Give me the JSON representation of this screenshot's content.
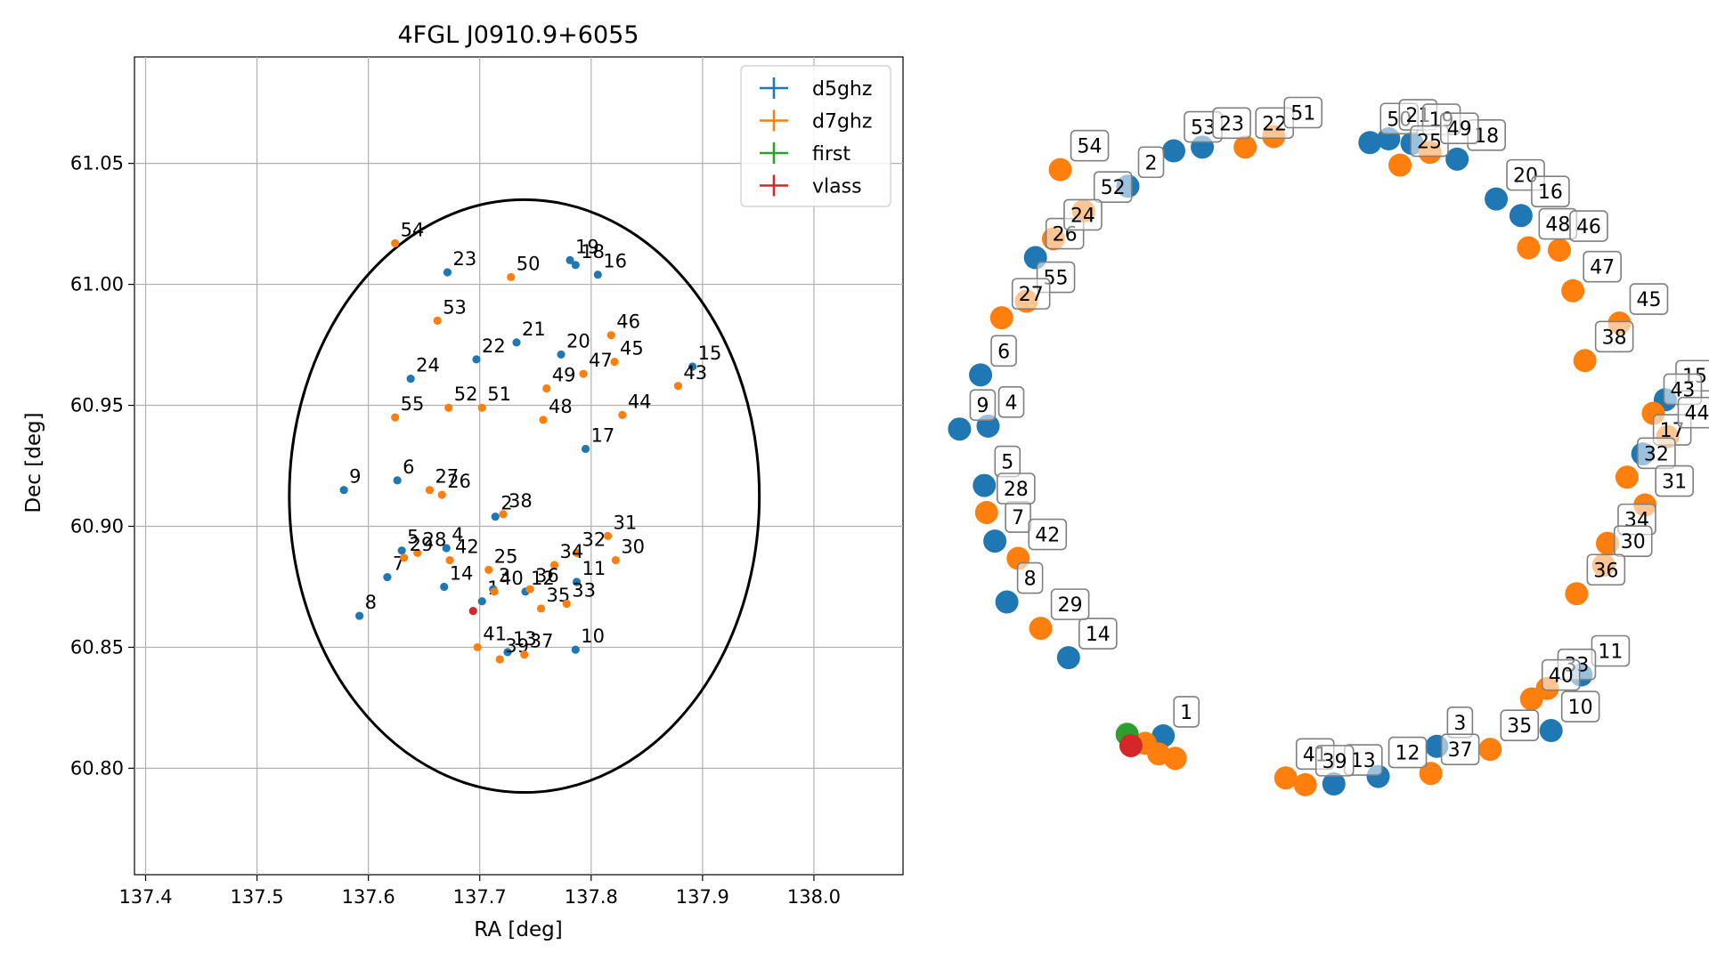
{
  "chart_data": [
    {
      "type": "scatter",
      "title": "4FGL J0910.9+6055",
      "xlabel": "RA [deg]",
      "ylabel": "Dec [deg]",
      "xlim": [
        137.39,
        138.08
      ],
      "ylim": [
        60.756,
        61.094
      ],
      "xticks": [
        137.4,
        137.5,
        137.6,
        137.7,
        137.8,
        137.9,
        138.0
      ],
      "yticks": [
        60.8,
        60.85,
        60.9,
        60.95,
        61.0,
        61.05
      ],
      "xtick_labels": [
        "137.4",
        "137.5",
        "137.6",
        "137.7",
        "137.8",
        "137.9",
        "138.0"
      ],
      "ytick_labels": [
        "60.80",
        "60.85",
        "60.90",
        "60.95",
        "61.00",
        "61.05"
      ],
      "grid": true,
      "legend_position": "top-right",
      "ellipse": {
        "center_ra": 137.74,
        "center_dec": 60.9125,
        "half_width_ra": 0.211,
        "half_height_dec": 0.1225,
        "color": "#000000"
      },
      "colors": {
        "d5ghz": "#1f77b4",
        "d7ghz": "#ff7f0e",
        "first": "#2ca02c",
        "vlass": "#d62728"
      },
      "series": [
        {
          "name": "d5ghz",
          "color": "#1f77b4",
          "points": [
            {
              "label": "8",
              "x": 137.592,
              "y": 60.863
            },
            {
              "label": "7",
              "x": 137.617,
              "y": 60.879
            },
            {
              "label": "5",
              "x": 137.63,
              "y": 60.89
            },
            {
              "label": "4",
              "x": 137.67,
              "y": 60.891
            },
            {
              "label": "14",
              "x": 137.668,
              "y": 60.875
            },
            {
              "label": "9",
              "x": 137.578,
              "y": 60.915
            },
            {
              "label": "6",
              "x": 137.626,
              "y": 60.919
            },
            {
              "label": "1",
              "x": 137.702,
              "y": 60.869
            },
            {
              "label": "3",
              "x": 137.712,
              "y": 60.874
            },
            {
              "label": "12",
              "x": 137.741,
              "y": 60.873
            },
            {
              "label": "11",
              "x": 137.787,
              "y": 60.877
            },
            {
              "label": "13",
              "x": 137.725,
              "y": 60.848
            },
            {
              "label": "10",
              "x": 137.786,
              "y": 60.849
            },
            {
              "label": "2",
              "x": 137.714,
              "y": 60.904
            },
            {
              "label": "17",
              "x": 137.795,
              "y": 60.932
            },
            {
              "label": "15",
              "x": 137.891,
              "y": 60.966
            },
            {
              "label": "20",
              "x": 137.773,
              "y": 60.971
            },
            {
              "label": "21",
              "x": 137.733,
              "y": 60.976
            },
            {
              "label": "22",
              "x": 137.697,
              "y": 60.969
            },
            {
              "label": "24",
              "x": 137.638,
              "y": 60.961
            },
            {
              "label": "23",
              "x": 137.671,
              "y": 61.005
            },
            {
              "label": "19",
              "x": 137.781,
              "y": 61.01
            },
            {
              "label": "18",
              "x": 137.786,
              "y": 61.008
            },
            {
              "label": "16",
              "x": 137.806,
              "y": 61.004
            }
          ]
        },
        {
          "name": "d7ghz",
          "color": "#ff7f0e",
          "points": [
            {
              "label": "54",
              "x": 137.624,
              "y": 61.017
            },
            {
              "label": "53",
              "x": 137.662,
              "y": 60.985
            },
            {
              "label": "50",
              "x": 137.728,
              "y": 61.003
            },
            {
              "label": "46",
              "x": 137.818,
              "y": 60.979
            },
            {
              "label": "45",
              "x": 137.821,
              "y": 60.968
            },
            {
              "label": "47",
              "x": 137.793,
              "y": 60.963
            },
            {
              "label": "49",
              "x": 137.76,
              "y": 60.957
            },
            {
              "label": "43",
              "x": 137.878,
              "y": 60.958
            },
            {
              "label": "44",
              "x": 137.828,
              "y": 60.946
            },
            {
              "label": "48",
              "x": 137.757,
              "y": 60.944
            },
            {
              "label": "51",
              "x": 137.702,
              "y": 60.949
            },
            {
              "label": "52",
              "x": 137.672,
              "y": 60.949
            },
            {
              "label": "55",
              "x": 137.624,
              "y": 60.945
            },
            {
              "label": "27",
              "x": 137.655,
              "y": 60.915
            },
            {
              "label": "26",
              "x": 137.666,
              "y": 60.913
            },
            {
              "label": "38",
              "x": 137.721,
              "y": 60.905
            },
            {
              "label": "31",
              "x": 137.815,
              "y": 60.896
            },
            {
              "label": "30",
              "x": 137.822,
              "y": 60.886
            },
            {
              "label": "32",
              "x": 137.787,
              "y": 60.889
            },
            {
              "label": "34",
              "x": 137.767,
              "y": 60.884
            },
            {
              "label": "28",
              "x": 137.644,
              "y": 60.889
            },
            {
              "label": "29",
              "x": 137.632,
              "y": 60.887
            },
            {
              "label": "42",
              "x": 137.673,
              "y": 60.886
            },
            {
              "label": "25",
              "x": 137.708,
              "y": 60.882
            },
            {
              "label": "40",
              "x": 137.713,
              "y": 60.873
            },
            {
              "label": "36",
              "x": 137.745,
              "y": 60.874
            },
            {
              "label": "35",
              "x": 137.755,
              "y": 60.866
            },
            {
              "label": "33",
              "x": 137.778,
              "y": 60.868
            },
            {
              "label": "41",
              "x": 137.698,
              "y": 60.85
            },
            {
              "label": "39",
              "x": 137.718,
              "y": 60.845
            },
            {
              "label": "37",
              "x": 137.74,
              "y": 60.847
            }
          ]
        },
        {
          "name": "first",
          "color": "#2ca02c",
          "points": []
        },
        {
          "name": "vlass",
          "color": "#d62728",
          "points": [
            {
              "label": "",
              "x": 137.694,
              "y": 60.865
            }
          ]
        }
      ]
    },
    {
      "type": "scatter",
      "title": "",
      "axes_visible": false,
      "xlim": [
        0,
        1
      ],
      "ylim": [
        0,
        1
      ],
      "marker_size": "large",
      "label_style": "boxed",
      "points": [
        {
          "label": "50",
          "x": 0.556,
          "y": 0.95,
          "series": "d5ghz"
        },
        {
          "label": "21",
          "x": 0.581,
          "y": 0.955,
          "series": "d5ghz"
        },
        {
          "label": "19",
          "x": 0.612,
          "y": 0.949,
          "series": "d5ghz"
        },
        {
          "label": "18",
          "x": 0.672,
          "y": 0.928,
          "series": "d5ghz"
        },
        {
          "label": "20",
          "x": 0.724,
          "y": 0.875,
          "series": "d5ghz"
        },
        {
          "label": "16",
          "x": 0.757,
          "y": 0.853,
          "series": "d5ghz"
        },
        {
          "label": "15",
          "x": 0.949,
          "y": 0.608,
          "series": "d5ghz"
        },
        {
          "label": "17",
          "x": 0.919,
          "y": 0.536,
          "series": "d5ghz"
        },
        {
          "label": "11",
          "x": 0.837,
          "y": 0.242,
          "series": "d5ghz"
        },
        {
          "label": "10",
          "x": 0.797,
          "y": 0.168,
          "series": "d5ghz"
        },
        {
          "label": "13",
          "x": 0.508,
          "y": 0.097,
          "series": "d5ghz"
        },
        {
          "label": "12",
          "x": 0.567,
          "y": 0.107,
          "series": "d5ghz"
        },
        {
          "label": "3",
          "x": 0.645,
          "y": 0.147,
          "series": "d5ghz"
        },
        {
          "label": "1",
          "x": 0.281,
          "y": 0.161,
          "series": "d5ghz"
        },
        {
          "label": "14",
          "x": 0.155,
          "y": 0.265,
          "series": "d5ghz"
        },
        {
          "label": "8",
          "x": 0.073,
          "y": 0.339,
          "series": "d5ghz"
        },
        {
          "label": "7",
          "x": 0.057,
          "y": 0.42,
          "series": "d5ghz"
        },
        {
          "label": "5",
          "x": 0.043,
          "y": 0.494,
          "series": "d5ghz"
        },
        {
          "label": "9",
          "x": 0.01,
          "y": 0.569,
          "series": "d5ghz"
        },
        {
          "label": "4",
          "x": 0.048,
          "y": 0.573,
          "series": "d5ghz"
        },
        {
          "label": "6",
          "x": 0.038,
          "y": 0.641,
          "series": "d5ghz"
        },
        {
          "label": "26",
          "x": 0.111,
          "y": 0.797,
          "series": "d5ghz"
        },
        {
          "label": "2",
          "x": 0.234,
          "y": 0.892,
          "series": "d5ghz"
        },
        {
          "label": "53",
          "x": 0.295,
          "y": 0.939,
          "series": "d5ghz"
        },
        {
          "label": "23",
          "x": 0.333,
          "y": 0.944,
          "series": "d5ghz"
        },
        {
          "label": "25",
          "x": 0.596,
          "y": 0.92,
          "series": "d7ghz"
        },
        {
          "label": "49",
          "x": 0.636,
          "y": 0.937,
          "series": "d7ghz"
        },
        {
          "label": "22",
          "x": 0.39,
          "y": 0.944,
          "series": "d7ghz"
        },
        {
          "label": "51",
          "x": 0.428,
          "y": 0.958,
          "series": "d7ghz"
        },
        {
          "label": "54",
          "x": 0.144,
          "y": 0.914,
          "series": "d7ghz"
        },
        {
          "label": "52",
          "x": 0.175,
          "y": 0.859,
          "series": "d7ghz"
        },
        {
          "label": "24",
          "x": 0.135,
          "y": 0.822,
          "series": "d7ghz"
        },
        {
          "label": "55",
          "x": 0.099,
          "y": 0.739,
          "series": "d7ghz"
        },
        {
          "label": "27",
          "x": 0.066,
          "y": 0.717,
          "series": "d7ghz"
        },
        {
          "label": "28",
          "x": 0.046,
          "y": 0.458,
          "series": "d7ghz"
        },
        {
          "label": "42",
          "x": 0.088,
          "y": 0.397,
          "series": "d7ghz"
        },
        {
          "label": "29",
          "x": 0.118,
          "y": 0.304,
          "series": "d7ghz"
        },
        {
          "label": "48",
          "x": 0.767,
          "y": 0.81,
          "series": "d7ghz"
        },
        {
          "label": "46",
          "x": 0.808,
          "y": 0.807,
          "series": "d7ghz"
        },
        {
          "label": "47",
          "x": 0.826,
          "y": 0.753,
          "series": "d7ghz"
        },
        {
          "label": "45",
          "x": 0.888,
          "y": 0.71,
          "series": "d7ghz"
        },
        {
          "label": "38",
          "x": 0.842,
          "y": 0.66,
          "series": "d7ghz"
        },
        {
          "label": "43",
          "x": 0.933,
          "y": 0.59,
          "series": "d7ghz"
        },
        {
          "label": "44",
          "x": 0.952,
          "y": 0.559,
          "series": "d7ghz"
        },
        {
          "label": "32",
          "x": 0.898,
          "y": 0.505,
          "series": "d7ghz"
        },
        {
          "label": "31",
          "x": 0.922,
          "y": 0.468,
          "series": "d7ghz"
        },
        {
          "label": "34",
          "x": 0.872,
          "y": 0.417,
          "series": "d7ghz"
        },
        {
          "label": "30",
          "x": 0.867,
          "y": 0.388,
          "series": "d7ghz"
        },
        {
          "label": "36",
          "x": 0.831,
          "y": 0.35,
          "series": "d7ghz"
        },
        {
          "label": "33",
          "x": 0.792,
          "y": 0.224,
          "series": "d7ghz"
        },
        {
          "label": "40",
          "x": 0.771,
          "y": 0.21,
          "series": "d7ghz"
        },
        {
          "label": "35",
          "x": 0.716,
          "y": 0.143,
          "series": "d7ghz"
        },
        {
          "label": "37",
          "x": 0.637,
          "y": 0.111,
          "series": "d7ghz"
        },
        {
          "label": "41",
          "x": 0.444,
          "y": 0.105,
          "series": "d7ghz"
        },
        {
          "label": "39",
          "x": 0.47,
          "y": 0.096,
          "series": "d7ghz"
        },
        {
          "label": "",
          "x": 0.257,
          "y": 0.151,
          "series": "d7ghz"
        },
        {
          "label": "",
          "x": 0.275,
          "y": 0.137,
          "series": "d7ghz"
        },
        {
          "label": "",
          "x": 0.297,
          "y": 0.131,
          "series": "d7ghz"
        },
        {
          "label": "",
          "x": 0.233,
          "y": 0.163,
          "series": "first"
        },
        {
          "label": "",
          "x": 0.238,
          "y": 0.148,
          "series": "vlass"
        }
      ]
    }
  ]
}
